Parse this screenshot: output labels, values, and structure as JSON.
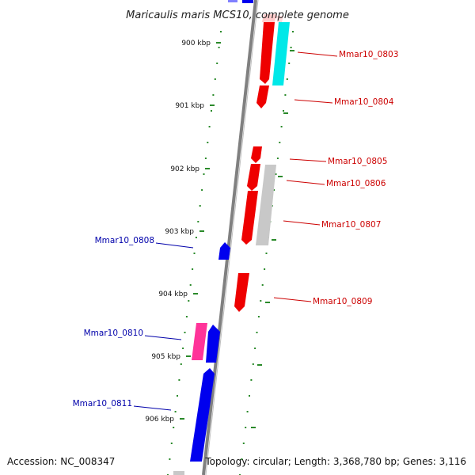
{
  "title": "Maricaulis maris MCS10, complete genome",
  "accession": "Accession: NC_008347",
  "summary": "Topology: circular; Length: 3,368,780 bp; Genes: 3,116",
  "ticks": [
    "900 kbp",
    "901 kbp",
    "902 kbp",
    "903 kbp",
    "904 kbp",
    "905 kbp",
    "906 kbp"
  ],
  "genes_forward": [
    {
      "name": "Mmar10_0803",
      "color": "#cc0000"
    },
    {
      "name": "Mmar10_0804",
      "color": "#cc0000"
    },
    {
      "name": "Mmar10_0805",
      "color": "#cc0000"
    },
    {
      "name": "Mmar10_0806",
      "color": "#cc0000"
    },
    {
      "name": "Mmar10_0807",
      "color": "#cc0000"
    },
    {
      "name": "Mmar10_0809",
      "color": "#cc0000"
    }
  ],
  "genes_reverse": [
    {
      "name": "Mmar10_0808",
      "color": "#0000aa"
    },
    {
      "name": "Mmar10_0810",
      "color": "#0000aa"
    },
    {
      "name": "Mmar10_0811",
      "color": "#0000aa"
    }
  ],
  "colors": {
    "forward_cds": "#ff0000",
    "reverse_cds": "#0000ee",
    "rna": "#ff3399",
    "other": "#00e0e0",
    "hypothetical": "#bbbbbb",
    "backbone": "#888888",
    "tick": "#2a8a2a"
  }
}
